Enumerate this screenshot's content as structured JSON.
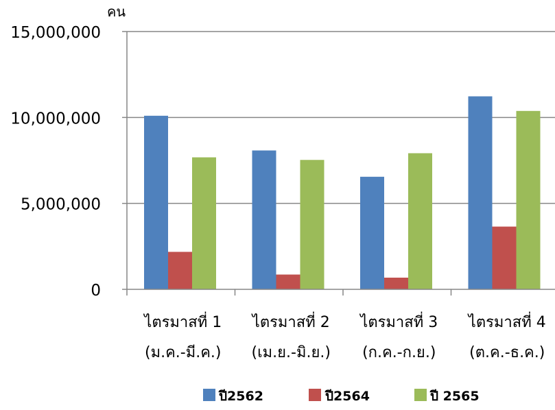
{
  "chart_data": {
    "type": "bar",
    "unit_label": "คน",
    "categories": [
      [
        "ไตรมาสที่ 1",
        "(ม.ค.-มี.ค.)"
      ],
      [
        "ไตรมาสที่ 2",
        "(เม.ย.-มิ.ย.)"
      ],
      [
        "ไตรมาสที่ 3",
        "(ก.ค.-ก.ย.)"
      ],
      [
        "ไตรมาสที่ 4",
        "(ต.ค.-ธ.ค.)"
      ]
    ],
    "series": [
      {
        "name": "ปี2562",
        "color": "#4f81bd",
        "values": [
          10100000,
          8080000,
          6550000,
          11230000
        ]
      },
      {
        "name": "ปี2564",
        "color": "#c0504d",
        "values": [
          2180000,
          860000,
          680000,
          3650000
        ]
      },
      {
        "name": "ปี 2565",
        "color": "#9bbb59",
        "values": [
          7680000,
          7530000,
          7920000,
          10380000
        ]
      }
    ],
    "yticks": [
      {
        "value": 0,
        "label": "0"
      },
      {
        "value": 5000000,
        "label": "5,000,000"
      },
      {
        "value": 10000000,
        "label": "10,000,000"
      },
      {
        "value": 15000000,
        "label": "15,000,000"
      }
    ],
    "ylim": [
      0,
      15000000
    ],
    "grid": true,
    "legend_position": "bottom",
    "colors": {
      "gridline": "#868686",
      "axis": "#868686"
    }
  }
}
